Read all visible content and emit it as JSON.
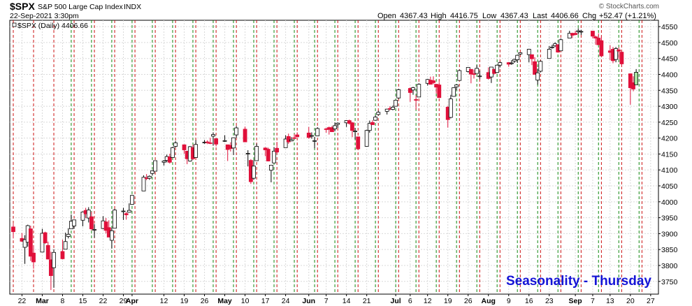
{
  "header": {
    "symbol": "$SPX",
    "name": "S&P 500 Large Cap Index",
    "exchange": "INDX",
    "datetime": "22-Sep-2021 3:30pm",
    "open_label": "Open",
    "open_value": "4367.43",
    "high_label": "High",
    "high_value": "4416.75",
    "low_label": "Low",
    "low_value": "4367.43",
    "last_label": "Last",
    "last_value": "4406.66",
    "chg_label": "Chg",
    "chg_value": "+52.47 (+1.21%)",
    "legend_text": "$SPX (Daily) 4406.66",
    "copyright": "© StockCharts.com"
  },
  "watermark": "Seasonality - Thursday",
  "colors": {
    "up_candle": "#ffffff",
    "down_candle": "#e0103a",
    "last_up_candle": "#a8e6a0",
    "candle_outline": "#000000",
    "red_line": "#cc1111",
    "green_line": "#118811",
    "grid": "#d9d9d9",
    "watermark": "#1414d6"
  },
  "chart_data": {
    "type": "candlestick",
    "ylim": [
      3710,
      4570
    ],
    "y_ticks": [
      3750,
      3800,
      3850,
      3900,
      3950,
      4000,
      4050,
      4100,
      4150,
      4200,
      4250,
      4300,
      4350,
      4400,
      4450,
      4500,
      4550
    ],
    "x_range": [
      "2021-02-19",
      "2021-09-28"
    ],
    "x_ticks": [
      {
        "label": "22",
        "date": "2021-02-22",
        "month": false
      },
      {
        "label": "Mar",
        "date": "2021-03-01",
        "month": true
      },
      {
        "label": "8",
        "date": "2021-03-08",
        "month": false
      },
      {
        "label": "15",
        "date": "2021-03-15",
        "month": false
      },
      {
        "label": "22",
        "date": "2021-03-22",
        "month": false
      },
      {
        "label": "29",
        "date": "2021-03-29",
        "month": false
      },
      {
        "label": "Apr",
        "date": "2021-04-01",
        "month": true
      },
      {
        "label": "12",
        "date": "2021-04-12",
        "month": false
      },
      {
        "label": "19",
        "date": "2021-04-19",
        "month": false
      },
      {
        "label": "26",
        "date": "2021-04-26",
        "month": false
      },
      {
        "label": "May",
        "date": "2021-05-03",
        "month": true
      },
      {
        "label": "10",
        "date": "2021-05-10",
        "month": false
      },
      {
        "label": "17",
        "date": "2021-05-17",
        "month": false
      },
      {
        "label": "24",
        "date": "2021-05-24",
        "month": false
      },
      {
        "label": "Jun",
        "date": "2021-06-01",
        "month": true
      },
      {
        "label": "7",
        "date": "2021-06-07",
        "month": false
      },
      {
        "label": "14",
        "date": "2021-06-14",
        "month": false
      },
      {
        "label": "21",
        "date": "2021-06-21",
        "month": false
      },
      {
        "label": "Jul",
        "date": "2021-07-01",
        "month": true
      },
      {
        "label": "6",
        "date": "2021-07-06",
        "month": false
      },
      {
        "label": "12",
        "date": "2021-07-12",
        "month": false
      },
      {
        "label": "19",
        "date": "2021-07-19",
        "month": false
      },
      {
        "label": "26",
        "date": "2021-07-26",
        "month": false
      },
      {
        "label": "Aug",
        "date": "2021-08-02",
        "month": true
      },
      {
        "label": "9",
        "date": "2021-08-09",
        "month": false
      },
      {
        "label": "16",
        "date": "2021-08-16",
        "month": false
      },
      {
        "label": "23",
        "date": "2021-08-23",
        "month": false
      },
      {
        "label": "Sep",
        "date": "2021-09-01",
        "month": true
      },
      {
        "label": "7",
        "date": "2021-09-07",
        "month": false
      },
      {
        "label": "13",
        "date": "2021-09-13",
        "month": false
      },
      {
        "label": "20",
        "date": "2021-09-20",
        "month": false
      },
      {
        "label": "27",
        "date": "2021-09-27",
        "month": false
      }
    ],
    "red_lines": [
      "2021-02-19",
      "2021-02-26",
      "2021-03-05",
      "2021-03-12",
      "2021-03-19",
      "2021-03-26",
      "2021-04-02",
      "2021-04-09",
      "2021-04-16",
      "2021-04-23",
      "2021-04-30",
      "2021-05-07",
      "2021-05-14",
      "2021-05-21",
      "2021-05-28",
      "2021-06-04",
      "2021-06-11",
      "2021-06-18",
      "2021-06-25",
      "2021-07-02",
      "2021-07-09",
      "2021-07-16",
      "2021-07-23",
      "2021-07-30",
      "2021-08-06",
      "2021-08-13",
      "2021-08-20",
      "2021-08-27",
      "2021-09-03",
      "2021-09-10",
      "2021-09-17",
      "2021-09-24"
    ],
    "green_lines": [
      "2021-03-11",
      "2021-03-18",
      "2021-03-25",
      "2021-04-01",
      "2021-04-08",
      "2021-04-15",
      "2021-04-22",
      "2021-04-29",
      "2021-05-06",
      "2021-05-13",
      "2021-05-20",
      "2021-05-27",
      "2021-06-03",
      "2021-06-10",
      "2021-06-17",
      "2021-06-24",
      "2021-07-01",
      "2021-07-08",
      "2021-07-15",
      "2021-07-22",
      "2021-07-29",
      "2021-08-05",
      "2021-08-12",
      "2021-08-19",
      "2021-08-26",
      "2021-09-02",
      "2021-09-09",
      "2021-09-16",
      "2021-09-23"
    ],
    "ohlc": [
      [
        "2021-02-19",
        3921,
        3931,
        3885,
        3906
      ],
      [
        "2021-02-22",
        3885,
        3902,
        3874,
        3876
      ],
      [
        "2021-02-23",
        3857,
        3895,
        3805,
        3881
      ],
      [
        "2021-02-24",
        3873,
        3928,
        3859,
        3925
      ],
      [
        "2021-02-25",
        3915,
        3925,
        3814,
        3829
      ],
      [
        "2021-02-26",
        3839,
        3861,
        3790,
        3811
      ],
      [
        "2021-03-01",
        3842,
        3915,
        3842,
        3901
      ],
      [
        "2021-03-02",
        3903,
        3906,
        3868,
        3871
      ],
      [
        "2021-03-03",
        3863,
        3875,
        3819,
        3820
      ],
      [
        "2021-03-04",
        3818,
        3843,
        3723,
        3768
      ],
      [
        "2021-03-05",
        3793,
        3851,
        3730,
        3841
      ],
      [
        "2021-03-08",
        3844,
        3881,
        3819,
        3821
      ],
      [
        "2021-03-09",
        3851,
        3903,
        3851,
        3875
      ],
      [
        "2021-03-10",
        3891,
        3917,
        3885,
        3898
      ],
      [
        "2021-03-11",
        3915,
        3960,
        3915,
        3939
      ],
      [
        "2021-03-12",
        3924,
        3944,
        3915,
        3943
      ],
      [
        "2021-03-15",
        3942,
        3970,
        3923,
        3968
      ],
      [
        "2021-03-16",
        3973,
        3981,
        3949,
        3962
      ],
      [
        "2021-03-17",
        3949,
        3983,
        3935,
        3974
      ],
      [
        "2021-03-18",
        3953,
        3969,
        3910,
        3915
      ],
      [
        "2021-03-19",
        3913,
        3930,
        3887,
        3913
      ],
      [
        "2021-03-22",
        3916,
        3955,
        3914,
        3940
      ],
      [
        "2021-03-23",
        3937,
        3949,
        3901,
        3910
      ],
      [
        "2021-03-24",
        3919,
        3942,
        3889,
        3889
      ],
      [
        "2021-03-25",
        3879,
        3919,
        3853,
        3909
      ],
      [
        "2021-03-26",
        3917,
        3978,
        3917,
        3974
      ],
      [
        "2021-03-29",
        3969,
        3981,
        3943,
        3971
      ],
      [
        "2021-03-30",
        3963,
        3968,
        3944,
        3959
      ],
      [
        "2021-03-31",
        3967,
        3995,
        3966,
        3973
      ],
      [
        "2021-04-01",
        3992,
        4021,
        3992,
        4020
      ],
      [
        "2021-04-05",
        4034,
        4083,
        4034,
        4077
      ],
      [
        "2021-04-06",
        4075,
        4087,
        4068,
        4074
      ],
      [
        "2021-04-07",
        4074,
        4083,
        4069,
        4080
      ],
      [
        "2021-04-08",
        4089,
        4098,
        4082,
        4097
      ],
      [
        "2021-04-09",
        4096,
        4129,
        4095,
        4129
      ],
      [
        "2021-04-12",
        4124,
        4131,
        4114,
        4128
      ],
      [
        "2021-04-13",
        4130,
        4148,
        4124,
        4142
      ],
      [
        "2021-04-14",
        4141,
        4151,
        4120,
        4124
      ],
      [
        "2021-04-15",
        4139,
        4173,
        4139,
        4170
      ],
      [
        "2021-04-16",
        4174,
        4191,
        4171,
        4185
      ],
      [
        "2021-04-19",
        4179,
        4180,
        4151,
        4163
      ],
      [
        "2021-04-20",
        4159,
        4160,
        4118,
        4135
      ],
      [
        "2021-04-21",
        4128,
        4175,
        4126,
        4173
      ],
      [
        "2021-04-22",
        4170,
        4179,
        4131,
        4135
      ],
      [
        "2021-04-23",
        4139,
        4194,
        4138,
        4180
      ],
      [
        "2021-04-26",
        4186,
        4194,
        4182,
        4187
      ],
      [
        "2021-04-27",
        4188,
        4193,
        4181,
        4186
      ],
      [
        "2021-04-28",
        4185,
        4201,
        4181,
        4183
      ],
      [
        "2021-04-29",
        4206,
        4218,
        4176,
        4211
      ],
      [
        "2021-04-30",
        4198,
        4198,
        4174,
        4181
      ],
      [
        "2021-05-03",
        4191,
        4209,
        4188,
        4192
      ],
      [
        "2021-05-04",
        4179,
        4179,
        4128,
        4164
      ],
      [
        "2021-05-05",
        4177,
        4187,
        4158,
        4167
      ],
      [
        "2021-05-06",
        4169,
        4202,
        4147,
        4201
      ],
      [
        "2021-05-07",
        4210,
        4238,
        4201,
        4232
      ],
      [
        "2021-05-10",
        4228,
        4236,
        4188,
        4188
      ],
      [
        "2021-05-11",
        4150,
        4162,
        4111,
        4152
      ],
      [
        "2021-05-12",
        4130,
        4134,
        4056,
        4063
      ],
      [
        "2021-05-13",
        4074,
        4131,
        4069,
        4112
      ],
      [
        "2021-05-14",
        4129,
        4183,
        4129,
        4174
      ],
      [
        "2021-05-17",
        4169,
        4171,
        4143,
        4163
      ],
      [
        "2021-05-18",
        4165,
        4170,
        4127,
        4128
      ],
      [
        "2021-05-19",
        4099,
        4116,
        4061,
        4115
      ],
      [
        "2021-05-20",
        4122,
        4172,
        4121,
        4159
      ],
      [
        "2021-05-21",
        4168,
        4188,
        4151,
        4156
      ],
      [
        "2021-05-24",
        4170,
        4209,
        4170,
        4197
      ],
      [
        "2021-05-25",
        4205,
        4214,
        4182,
        4188
      ],
      [
        "2021-05-26",
        4191,
        4203,
        4190,
        4195
      ],
      [
        "2021-05-27",
        4201,
        4213,
        4197,
        4200
      ],
      [
        "2021-05-28",
        4210,
        4218,
        4203,
        4204
      ],
      [
        "2021-06-01",
        4216,
        4235,
        4198,
        4202
      ],
      [
        "2021-06-02",
        4207,
        4218,
        4198,
        4208
      ],
      [
        "2021-06-03",
        4191,
        4204,
        4168,
        4192
      ],
      [
        "2021-06-04",
        4207,
        4234,
        4206,
        4230
      ],
      [
        "2021-06-07",
        4229,
        4232,
        4217,
        4227
      ],
      [
        "2021-06-08",
        4233,
        4236,
        4211,
        4227
      ],
      [
        "2021-06-09",
        4233,
        4238,
        4219,
        4220
      ],
      [
        "2021-06-10",
        4229,
        4249,
        4221,
        4239
      ],
      [
        "2021-06-11",
        4243,
        4249,
        4232,
        4247
      ],
      [
        "2021-06-14",
        4248,
        4256,
        4235,
        4255
      ],
      [
        "2021-06-15",
        4255,
        4258,
        4242,
        4246
      ],
      [
        "2021-06-16",
        4248,
        4251,
        4203,
        4224
      ],
      [
        "2021-06-17",
        4220,
        4232,
        4196,
        4222
      ],
      [
        "2021-06-18",
        4204,
        4204,
        4164,
        4166
      ],
      [
        "2021-06-21",
        4174,
        4226,
        4173,
        4224
      ],
      [
        "2021-06-22",
        4224,
        4255,
        4217,
        4246
      ],
      [
        "2021-06-23",
        4249,
        4256,
        4241,
        4242
      ],
      [
        "2021-06-24",
        4256,
        4271,
        4256,
        4266
      ],
      [
        "2021-06-25",
        4274,
        4286,
        4271,
        4281
      ],
      [
        "2021-06-28",
        4284,
        4292,
        4274,
        4291
      ],
      [
        "2021-06-29",
        4293,
        4300,
        4287,
        4291
      ],
      [
        "2021-06-30",
        4290,
        4302,
        4287,
        4297
      ],
      [
        "2021-07-01",
        4300,
        4320,
        4300,
        4319
      ],
      [
        "2021-07-02",
        4326,
        4355,
        4323,
        4352
      ],
      [
        "2021-07-06",
        4356,
        4359,
        4314,
        4343
      ],
      [
        "2021-07-07",
        4351,
        4361,
        4336,
        4358
      ],
      [
        "2021-07-08",
        4321,
        4334,
        4289,
        4320
      ],
      [
        "2021-07-09",
        4329,
        4372,
        4329,
        4369
      ],
      [
        "2021-07-12",
        4372,
        4386,
        4365,
        4384
      ],
      [
        "2021-07-13",
        4382,
        4393,
        4369,
        4369
      ],
      [
        "2021-07-14",
        4380,
        4394,
        4369,
        4374
      ],
      [
        "2021-07-15",
        4369,
        4369,
        4340,
        4360
      ],
      [
        "2021-07-16",
        4367,
        4376,
        4327,
        4327
      ],
      [
        "2021-07-19",
        4297,
        4301,
        4233,
        4258
      ],
      [
        "2021-07-20",
        4265,
        4336,
        4262,
        4323
      ],
      [
        "2021-07-21",
        4331,
        4359,
        4330,
        4358
      ],
      [
        "2021-07-22",
        4361,
        4369,
        4350,
        4367
      ],
      [
        "2021-07-23",
        4381,
        4415,
        4381,
        4412
      ],
      [
        "2021-07-26",
        4409,
        4422,
        4406,
        4422
      ],
      [
        "2021-07-27",
        4416,
        4416,
        4372,
        4401
      ],
      [
        "2021-07-28",
        4402,
        4415,
        4387,
        4400
      ],
      [
        "2021-07-29",
        4403,
        4429,
        4403,
        4419
      ],
      [
        "2021-07-30",
        4395,
        4412,
        4385,
        4395
      ],
      [
        "2021-08-02",
        4406,
        4422,
        4384,
        4387
      ],
      [
        "2021-08-03",
        4392,
        4423,
        4373,
        4423
      ],
      [
        "2021-08-04",
        4416,
        4417,
        4400,
        4403
      ],
      [
        "2021-08-05",
        4406,
        4430,
        4404,
        4429
      ],
      [
        "2021-08-06",
        4429,
        4440,
        4422,
        4437
      ],
      [
        "2021-08-09",
        4437,
        4439,
        4424,
        4432
      ],
      [
        "2021-08-10",
        4435,
        4445,
        4430,
        4436
      ],
      [
        "2021-08-11",
        4442,
        4449,
        4436,
        4447
      ],
      [
        "2021-08-12",
        4446,
        4461,
        4436,
        4460
      ],
      [
        "2021-08-13",
        4464,
        4468,
        4461,
        4468
      ],
      [
        "2021-08-16",
        4462,
        4480,
        4438,
        4479
      ],
      [
        "2021-08-17",
        4462,
        4462,
        4429,
        4449
      ],
      [
        "2021-08-18",
        4440,
        4454,
        4400,
        4400
      ],
      [
        "2021-08-19",
        4382,
        4418,
        4368,
        4405
      ],
      [
        "2021-08-20",
        4410,
        4444,
        4406,
        4441
      ],
      [
        "2021-08-23",
        4450,
        4489,
        4450,
        4479
      ],
      [
        "2021-08-24",
        4484,
        4493,
        4481,
        4486
      ],
      [
        "2021-08-25",
        4490,
        4501,
        4486,
        4496
      ],
      [
        "2021-08-26",
        4493,
        4495,
        4468,
        4470
      ],
      [
        "2021-08-27",
        4474,
        4513,
        4474,
        4509
      ],
      [
        "2021-08-30",
        4514,
        4537,
        4514,
        4529
      ],
      [
        "2021-08-31",
        4529,
        4531,
        4514,
        4523
      ],
      [
        "2021-09-01",
        4529,
        4537,
        4523,
        4525
      ],
      [
        "2021-09-02",
        4534,
        4545,
        4525,
        4537
      ],
      [
        "2021-09-03",
        4533,
        4540,
        4524,
        4535
      ],
      [
        "2021-09-07",
        4536,
        4536,
        4513,
        4520
      ],
      [
        "2021-09-08",
        4518,
        4522,
        4493,
        4514
      ],
      [
        "2021-09-09",
        4514,
        4529,
        4493,
        4493
      ],
      [
        "2021-09-10",
        4506,
        4520,
        4457,
        4458
      ],
      [
        "2021-09-13",
        4474,
        4492,
        4445,
        4469
      ],
      [
        "2021-09-14",
        4479,
        4486,
        4435,
        4443
      ],
      [
        "2021-09-15",
        4447,
        4486,
        4438,
        4481
      ],
      [
        "2021-09-16",
        4477,
        4485,
        4448,
        4473
      ],
      [
        "2021-09-17",
        4470,
        4471,
        4427,
        4433
      ],
      [
        "2021-09-20",
        4402,
        4402,
        4305,
        4358
      ],
      [
        "2021-09-21",
        4374,
        4394,
        4347,
        4354
      ],
      [
        "2021-09-22",
        4367.43,
        4416.75,
        4367.43,
        4406.66
      ]
    ]
  }
}
